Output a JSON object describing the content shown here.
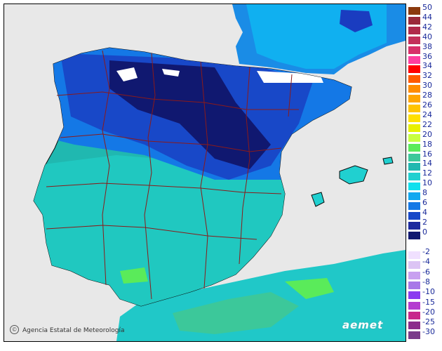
{
  "credit": "Agencia Estatal de Meteorología",
  "logo": "aemet",
  "legend": {
    "positive": [
      {
        "label": "50",
        "color": "#8b3a0e"
      },
      {
        "label": "44",
        "color": "#9a2a3a"
      },
      {
        "label": "42",
        "color": "#b02a4a"
      },
      {
        "label": "40",
        "color": "#c3305a"
      },
      {
        "label": "38",
        "color": "#d8306a"
      },
      {
        "label": "36",
        "color": "#ff3ea0"
      },
      {
        "label": "34",
        "color": "#ff0000"
      },
      {
        "label": "32",
        "color": "#ff5a00"
      },
      {
        "label": "30",
        "color": "#ff8c00"
      },
      {
        "label": "28",
        "color": "#ffa500"
      },
      {
        "label": "26",
        "color": "#ffc400"
      },
      {
        "label": "24",
        "color": "#ffe000"
      },
      {
        "label": "22",
        "color": "#e8f000"
      },
      {
        "label": "20",
        "color": "#c8ff40"
      },
      {
        "label": "18",
        "color": "#5aeb5a"
      },
      {
        "label": "16",
        "color": "#3cc89a"
      },
      {
        "label": "14",
        "color": "#20b8b0"
      },
      {
        "label": "12",
        "color": "#20d0d0"
      },
      {
        "label": "10",
        "color": "#10e0ee"
      },
      {
        "label": "8",
        "color": "#10a8f0"
      },
      {
        "label": "6",
        "color": "#1478e6"
      },
      {
        "label": "4",
        "color": "#1848c8"
      },
      {
        "label": "2",
        "color": "#1c2a9e"
      },
      {
        "label": "0",
        "color": "#101870"
      }
    ],
    "negative": [
      {
        "label": "-2",
        "color": "#f0e0ff"
      },
      {
        "label": "-4",
        "color": "#dcc4f4"
      },
      {
        "label": "-6",
        "color": "#c8a0f0"
      },
      {
        "label": "-8",
        "color": "#a878e8"
      },
      {
        "label": "-10",
        "color": "#8a3cf0"
      },
      {
        "label": "-15",
        "color": "#b43cd0"
      },
      {
        "label": "-20",
        "color": "#c8288c"
      },
      {
        "label": "-25",
        "color": "#8c2c8c"
      },
      {
        "label": "-30",
        "color": "#7a3a8a"
      }
    ]
  },
  "map_colors": {
    "sea": "#e8e8e8",
    "coast": "#0a0a0a",
    "borders": "#8b1a1a"
  }
}
